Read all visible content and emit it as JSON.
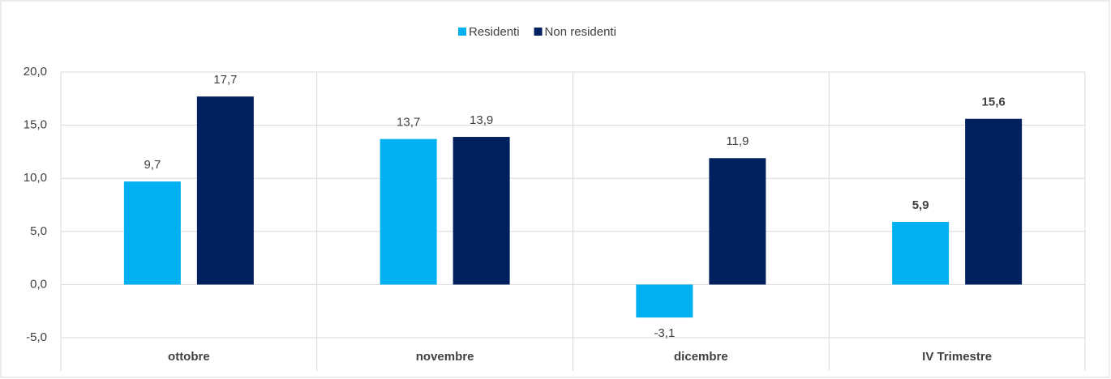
{
  "chart_data": {
    "type": "bar",
    "categories": [
      "ottobre",
      "novembre",
      "dicembre",
      "IV Trimestre"
    ],
    "series": [
      {
        "name": "Residenti",
        "color": "#00b0f0",
        "values": [
          9.7,
          13.7,
          -3.1,
          5.9
        ],
        "value_labels": [
          "9,7",
          "13,7",
          "-3,1",
          "5,9"
        ]
      },
      {
        "name": "Non residenti",
        "color": "#002060",
        "values": [
          17.7,
          13.9,
          11.9,
          15.6
        ],
        "value_labels": [
          "17,7",
          "13,9",
          "11,9",
          "15,6"
        ]
      }
    ],
    "ylim": [
      -5,
      20
    ],
    "yticks": [
      {
        "value": -5,
        "label": "-5,0"
      },
      {
        "value": 0,
        "label": "0,0"
      },
      {
        "value": 5,
        "label": "5,0"
      },
      {
        "value": 10,
        "label": "10,0"
      },
      {
        "value": 15,
        "label": "15,0"
      },
      {
        "value": 20,
        "label": "20,0"
      }
    ],
    "grid": true,
    "legend": "top",
    "bold_labels_index": 3
  }
}
